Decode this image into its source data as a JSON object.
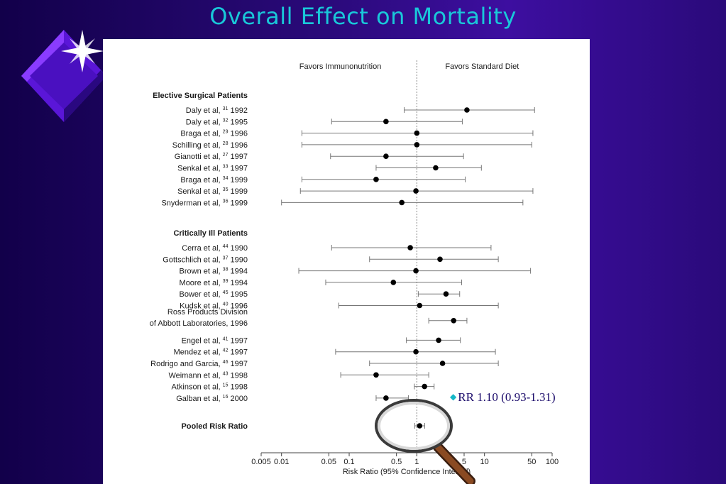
{
  "slide": {
    "title": "Overall Effect on Mortality"
  },
  "annotation": {
    "text": "RR 1.10 (0.93-1.31)",
    "bullet_icon": "diamond-icon"
  },
  "decor": {
    "left_graphic": "sparkle-diamond-icon",
    "magnifier": "magnifying-glass-icon"
  },
  "colors": {
    "title": "#19c8d9",
    "background": "#2a0a7a",
    "annotation": "#1a0a6a"
  },
  "chart_data": {
    "type": "forest",
    "xlabel": "Risk Ratio (95% Confidence Interval)",
    "x_scale": "log",
    "xlim": [
      0.005,
      100
    ],
    "xticks": [
      0.005,
      0.01,
      0.05,
      0.1,
      0.5,
      1,
      5,
      10,
      50,
      100
    ],
    "xtick_labels": [
      "0.005",
      "0.01",
      "0.05",
      "0.1",
      "0.5",
      "1",
      "5",
      "10",
      "50",
      "100"
    ],
    "reference_line": 1,
    "left_header": "Favors Immunonutrition",
    "right_header": "Favors Standard Diet",
    "groups": [
      {
        "name": "Elective Surgical Patients",
        "studies": [
          {
            "author": "Daly et al,",
            "ref": "31",
            "year": "1992",
            "rr": 5.5,
            "lower": 0.65,
            "upper": 55
          },
          {
            "author": "Daly et al,",
            "ref": "32",
            "year": "1995",
            "rr": 0.35,
            "lower": 0.055,
            "upper": 4.7
          },
          {
            "author": "Braga et al,",
            "ref": "29",
            "year": "1996",
            "rr": 1.0,
            "lower": 0.02,
            "upper": 52
          },
          {
            "author": "Schilling et al,",
            "ref": "28",
            "year": "1996",
            "rr": 1.0,
            "lower": 0.02,
            "upper": 50
          },
          {
            "author": "Gianotti et al,",
            "ref": "27",
            "year": "1997",
            "rr": 0.35,
            "lower": 0.053,
            "upper": 4.9
          },
          {
            "author": "Senkal et al,",
            "ref": "33",
            "year": "1997",
            "rr": 1.9,
            "lower": 0.25,
            "upper": 9.0
          },
          {
            "author": "Braga et al,",
            "ref": "34",
            "year": "1999",
            "rr": 0.25,
            "lower": 0.02,
            "upper": 5.2
          },
          {
            "author": "Senkal et al,",
            "ref": "35",
            "year": "1999",
            "rr": 0.97,
            "lower": 0.019,
            "upper": 52
          },
          {
            "author": "Snyderman et al,",
            "ref": "36",
            "year": "1999",
            "rr": 0.6,
            "lower": 0.01,
            "upper": 37
          }
        ]
      },
      {
        "name": "Critically Ill Patients",
        "studies": [
          {
            "author": "Cerra et al,",
            "ref": "44",
            "year": "1990",
            "rr": 0.8,
            "lower": 0.055,
            "upper": 12.5
          },
          {
            "author": "Gottschlich et al,",
            "ref": "37",
            "year": "1990",
            "rr": 2.2,
            "lower": 0.2,
            "upper": 16
          },
          {
            "author": "Brown et al,",
            "ref": "38",
            "year": "1994",
            "rr": 0.97,
            "lower": 0.018,
            "upper": 48
          },
          {
            "author": "Moore et al,",
            "ref": "39",
            "year": "1994",
            "rr": 0.45,
            "lower": 0.045,
            "upper": 4.6
          },
          {
            "author": "Bower et al,",
            "ref": "45",
            "year": "1995",
            "rr": 2.7,
            "lower": 1.05,
            "upper": 4.3
          },
          {
            "author": "Kudsk et al,",
            "ref": "40",
            "year": "1996",
            "rr": 1.1,
            "lower": 0.07,
            "upper": 16
          },
          {
            "author": "Ross Products Division",
            "author_line2": "of Abbott Laboratories,",
            "ref": "",
            "year": "1996",
            "rr": 3.5,
            "lower": 1.5,
            "upper": 5.5
          },
          {
            "author": "Engel et al,",
            "ref": "41",
            "year": "1997",
            "rr": 2.1,
            "lower": 0.7,
            "upper": 4.4
          },
          {
            "author": "Mendez et al,",
            "ref": "42",
            "year": "1997",
            "rr": 0.97,
            "lower": 0.063,
            "upper": 14.5
          },
          {
            "author": "Rodrigo and Garcia,",
            "ref": "46",
            "year": "1997",
            "rr": 2.4,
            "lower": 0.2,
            "upper": 16
          },
          {
            "author": "Weimann et al,",
            "ref": "43",
            "year": "1998",
            "rr": 0.25,
            "lower": 0.075,
            "upper": 1.5
          },
          {
            "author": "Atkinson et al,",
            "ref": "15",
            "year": "1998",
            "rr": 1.3,
            "lower": 0.92,
            "upper": 1.8
          },
          {
            "author": "Galban et al,",
            "ref": "16",
            "year": "2000",
            "rr": 0.35,
            "lower": 0.25,
            "upper": 0.75
          }
        ]
      }
    ],
    "pooled": {
      "label": "Pooled Risk Ratio",
      "rr": 1.1,
      "lower": 0.93,
      "upper": 1.31
    }
  }
}
